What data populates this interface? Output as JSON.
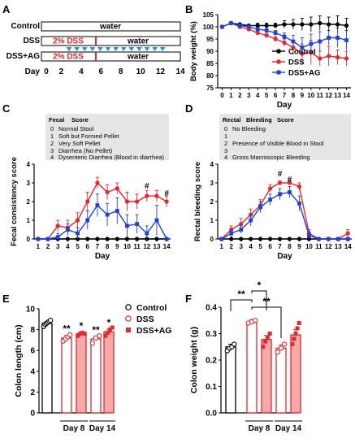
{
  "panels": {
    "A": {
      "letter": "A",
      "rows": [
        {
          "label": "Control",
          "segments": [
            {
              "text": "water"
            }
          ]
        },
        {
          "label": "DSS",
          "segments": [
            {
              "text": "2% DSS"
            },
            {
              "text": "water"
            }
          ]
        },
        {
          "label": "DSS+AG",
          "segments": [
            {
              "text": "2% DSS"
            },
            {
              "text": "water"
            }
          ]
        }
      ],
      "day_label": "Day",
      "day_ticks": [
        "0",
        "2",
        "4",
        "6",
        "8",
        "10",
        "12",
        "14"
      ],
      "colors": {
        "dss": "#e8262c",
        "triangle": "#2196d3"
      }
    },
    "B": {
      "letter": "B"
    },
    "C": {
      "letter": "C",
      "legend_header": [
        "Fecal",
        "Score"
      ],
      "legend_rows": [
        [
          "0",
          "Normal Stool"
        ],
        [
          "1",
          "Soft but Formed Pellet"
        ],
        [
          "2",
          "Very Soft Pellet"
        ],
        [
          "3",
          "Diarrhea (No Pellet)"
        ],
        [
          "4",
          "Dysenteric Diarrhea (Blood in diarrhea)"
        ]
      ]
    },
    "D": {
      "letter": "D",
      "legend_header": [
        "Rectal",
        "Bleeding",
        "Score"
      ],
      "legend_rows": [
        [
          "0",
          "No Bleeding"
        ],
        [
          "1",
          ""
        ],
        [
          "2",
          "Presence of Visible Blood in Stool"
        ],
        [
          "3",
          ""
        ],
        [
          "4",
          "Gross Macroscopic Bleeding"
        ]
      ]
    },
    "E": {
      "letter": "E",
      "group_labels": [
        "Day 8",
        "Day 14"
      ]
    },
    "F": {
      "letter": "F",
      "group_labels": [
        "Day 8",
        "Day 14"
      ]
    }
  },
  "colors": {
    "control": "#000000",
    "dss": "#e8262c",
    "dssag": "#1f3fe0",
    "dss_fill": "#f7a8a8",
    "legend_bg": "#e6e6e6"
  },
  "chart_data": [
    {
      "id": "B",
      "type": "line",
      "xlabel": "Day",
      "ylabel": "Body weight (%)",
      "x": [
        0,
        1,
        2,
        3,
        4,
        5,
        6,
        7,
        8,
        9,
        10,
        11,
        12,
        13,
        14
      ],
      "ylim": [
        75,
        105
      ],
      "yticks": [
        75,
        80,
        85,
        90,
        95,
        100,
        105
      ],
      "legend": "right",
      "series": [
        {
          "name": "Control",
          "color": "#000000",
          "marker": "circle",
          "values": [
            100,
            101.5,
            101,
            100.5,
            100.5,
            100.5,
            100.5,
            101,
            101,
            101,
            101,
            101.5,
            101,
            101,
            100.5
          ],
          "errors": [
            0.3,
            0.5,
            0.5,
            0.5,
            1,
            1,
            1,
            1.5,
            2,
            2.5,
            3,
            3,
            3,
            3.5,
            3
          ]
        },
        {
          "name": "DSS",
          "color": "#e8262c",
          "marker": "circle",
          "values": [
            100,
            101.5,
            100,
            99,
            97.5,
            96.5,
            95,
            93.5,
            91.5,
            89,
            89.5,
            87,
            88,
            87.5,
            87
          ],
          "errors": [
            0.3,
            0.5,
            0.5,
            0.7,
            0.7,
            0.8,
            1,
            1.5,
            3,
            4,
            5,
            3,
            4,
            3,
            3
          ]
        },
        {
          "name": "DSS+AG",
          "color": "#1f3fe0",
          "marker": "square",
          "values": [
            100,
            101.5,
            100.5,
            100,
            99,
            98.5,
            97.5,
            96,
            94,
            91.5,
            93,
            94,
            95.5,
            95.5,
            94.5
          ],
          "errors": [
            0.3,
            0.5,
            0.5,
            0.5,
            0.7,
            0.8,
            1,
            1.5,
            2.5,
            4,
            4,
            4,
            3,
            4,
            4
          ]
        }
      ]
    },
    {
      "id": "C",
      "type": "line",
      "xlabel": "Day",
      "ylabel": "Fecal consistency score",
      "x": [
        1,
        2,
        3,
        4,
        5,
        6,
        7,
        8,
        9,
        10,
        11,
        12,
        13,
        14
      ],
      "ylim": [
        0,
        4
      ],
      "yticks": [
        0,
        1,
        2,
        3,
        4
      ],
      "annotations": [
        {
          "text": "#",
          "x": 12,
          "y": 2.7
        },
        {
          "text": "#",
          "x": 14,
          "y": 2.3
        }
      ],
      "series": [
        {
          "name": "Control",
          "color": "#000000",
          "marker": "circle",
          "values": [
            0,
            0,
            0,
            0,
            0,
            0,
            0,
            0,
            0,
            0,
            0,
            0,
            0,
            0
          ],
          "errors": [
            0,
            0,
            0,
            0,
            0,
            0,
            0,
            0,
            0,
            0,
            0,
            0,
            0,
            0
          ]
        },
        {
          "name": "DSS",
          "color": "#e8262c",
          "marker": "circle",
          "values": [
            0,
            0,
            0.7,
            0.6,
            1,
            2,
            3,
            2.5,
            2.7,
            2,
            2,
            2.3,
            2.3,
            2
          ],
          "errors": [
            0,
            0,
            0.3,
            0.4,
            0.4,
            0.5,
            0.3,
            0.4,
            0.3,
            0.5,
            0.4,
            0.3,
            0.3,
            0.3
          ]
        },
        {
          "name": "DSS+AG",
          "color": "#1f3fe0",
          "marker": "square",
          "values": [
            0,
            0,
            0.1,
            0.5,
            0.3,
            1,
            1.8,
            1.3,
            1.5,
            0.7,
            0.8,
            0.3,
            1,
            0
          ],
          "errors": [
            0,
            0,
            0.2,
            0.3,
            0.3,
            0.5,
            0.6,
            0.6,
            0.7,
            0.6,
            0.5,
            0.4,
            0.8,
            0
          ]
        }
      ]
    },
    {
      "id": "D",
      "type": "line",
      "xlabel": "Day",
      "ylabel": "Rectal bleeding score",
      "x": [
        1,
        2,
        3,
        4,
        5,
        6,
        7,
        8,
        9,
        10,
        11,
        12,
        13,
        14
      ],
      "ylim": [
        0,
        4
      ],
      "yticks": [
        0,
        1,
        2,
        3,
        4
      ],
      "annotations": [
        {
          "text": "#",
          "x": 7,
          "y": 3.35
        },
        {
          "text": "#",
          "x": 8,
          "y": 3.05
        }
      ],
      "series": [
        {
          "name": "Control",
          "color": "#000000",
          "marker": "circle",
          "values": [
            0,
            0,
            0,
            0,
            0,
            0,
            0,
            0,
            0,
            0,
            0,
            0,
            0,
            0
          ],
          "errors": [
            0,
            0,
            0,
            0,
            0,
            0,
            0,
            0,
            0,
            0,
            0,
            0,
            0,
            0
          ]
        },
        {
          "name": "DSS",
          "color": "#e8262c",
          "marker": "circle",
          "values": [
            0,
            0.5,
            0.8,
            1.3,
            1.8,
            2.7,
            3,
            3,
            2.8,
            0.3,
            0,
            0,
            0,
            0.3
          ],
          "errors": [
            0,
            0.2,
            0.3,
            0.3,
            0.3,
            0.2,
            0.1,
            0.1,
            0.2,
            0.2,
            0,
            0,
            0,
            0.2
          ]
        },
        {
          "name": "DSS+AG",
          "color": "#1f3fe0",
          "marker": "square",
          "values": [
            0,
            0.3,
            0.5,
            1,
            1.7,
            2.1,
            2.4,
            2.5,
            1.9,
            0.2,
            0,
            0,
            0,
            0
          ],
          "errors": [
            0,
            0.2,
            0.2,
            0.3,
            0.3,
            0.3,
            0.3,
            0.3,
            0.4,
            0.2,
            0,
            0,
            0,
            0
          ]
        }
      ]
    },
    {
      "id": "E",
      "type": "bar",
      "ylabel": "Colon length (cm)",
      "ylim": [
        0,
        10
      ],
      "yticks": [
        0,
        2,
        4,
        6,
        8,
        10
      ],
      "legend": "top-right",
      "legend_entries": [
        {
          "name": "Control",
          "color": "#000000",
          "marker": "open-circle"
        },
        {
          "name": "DSS",
          "color": "#e8262c",
          "marker": "open-circle"
        },
        {
          "name": "DSS+AG",
          "color": "#e8262c",
          "marker": "filled-square"
        }
      ],
      "bars": [
        {
          "group": "Control",
          "value": 8.6,
          "error": 0.2,
          "style": "control",
          "points": [
            8.3,
            8.5,
            8.6,
            8.7,
            8.8,
            8.9
          ],
          "sig": ""
        },
        {
          "group": "Day 8",
          "series": "DSS",
          "value": 7.2,
          "error": 0.25,
          "style": "dss",
          "points": [
            6.9,
            7.1,
            7.3,
            7.5
          ],
          "sig": "**"
        },
        {
          "group": "Day 8",
          "series": "DSS+AG",
          "value": 7.6,
          "error": 0.15,
          "style": "dssag",
          "points": [
            7.4,
            7.6,
            7.7,
            7.6
          ],
          "sig": "*"
        },
        {
          "group": "Day 14",
          "series": "DSS",
          "value": 7.1,
          "error": 0.25,
          "style": "dss",
          "points": [
            6.7,
            7.2,
            7.4
          ],
          "sig": "**"
        },
        {
          "group": "Day 14",
          "series": "DSS+AG",
          "value": 7.8,
          "error": 0.25,
          "style": "dssag",
          "points": [
            7.4,
            7.7,
            8.0,
            8.2
          ],
          "sig": "*"
        }
      ]
    },
    {
      "id": "F",
      "type": "bar",
      "ylabel": "Colon weight (g)",
      "ylim": [
        0.0,
        0.4
      ],
      "yticks": [
        0.0,
        0.1,
        0.2,
        0.3,
        0.4
      ],
      "bars": [
        {
          "group": "Control",
          "value": 0.25,
          "error": 0.01,
          "style": "control",
          "points": [
            0.235,
            0.245,
            0.25,
            0.26
          ],
          "sig": ""
        },
        {
          "group": "Day 8",
          "series": "DSS",
          "value": 0.345,
          "error": 0.008,
          "style": "dss",
          "points": [
            0.34,
            0.345,
            0.35
          ],
          "sig": ""
        },
        {
          "group": "Day 8",
          "series": "DSS+AG",
          "value": 0.278,
          "error": 0.015,
          "style": "dssag",
          "points": [
            0.25,
            0.27,
            0.285,
            0.3
          ],
          "sig": ""
        },
        {
          "group": "Day 14",
          "series": "DSS",
          "value": 0.245,
          "error": 0.012,
          "style": "dss",
          "points": [
            0.23,
            0.245,
            0.26
          ],
          "sig": ""
        },
        {
          "group": "Day 14",
          "series": "DSS+AG",
          "value": 0.295,
          "error": 0.02,
          "style": "dssag",
          "points": [
            0.26,
            0.28,
            0.3,
            0.32,
            0.34
          ],
          "sig": ""
        }
      ],
      "comparisons": [
        {
          "from": 0,
          "to": 1,
          "text": "**"
        },
        {
          "from": 1,
          "to": 2,
          "text": "*"
        },
        {
          "from": 1,
          "to": 3,
          "text": "**"
        }
      ]
    }
  ]
}
